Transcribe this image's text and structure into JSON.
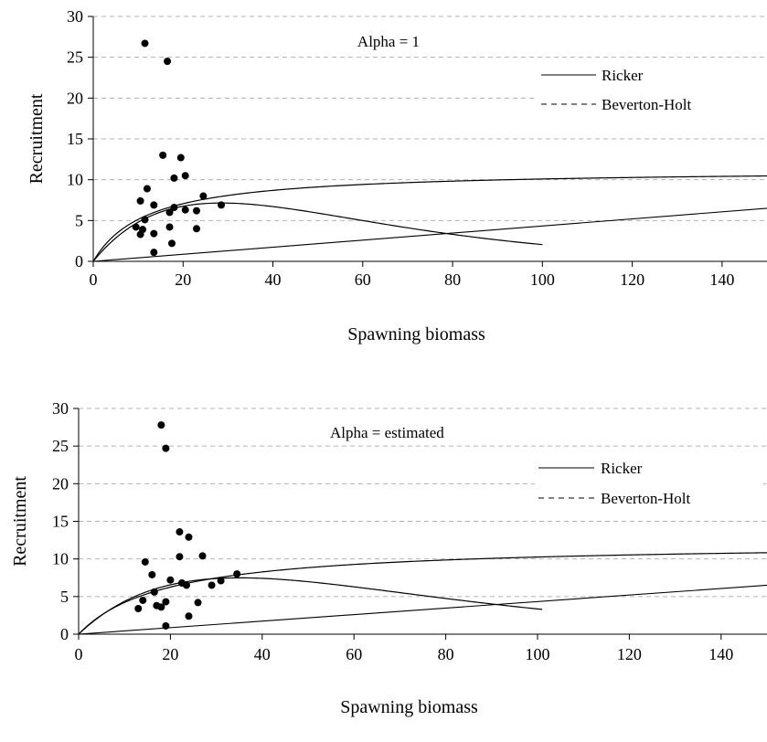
{
  "chart_data": [
    {
      "type": "scatter",
      "annotation": "Alpha = 1",
      "xlabel": "Spawning biomass",
      "ylabel": "Recruitment",
      "xlim": [
        0,
        150
      ],
      "ylim": [
        0,
        30
      ],
      "x_ticks": [
        0,
        20,
        40,
        60,
        80,
        100,
        120,
        140
      ],
      "y_ticks": [
        0,
        5,
        10,
        15,
        20,
        25,
        30
      ],
      "grid": "horizontal dashed",
      "legend": {
        "placement": "top-right",
        "entries": [
          "Ricker",
          "Beverton-Holt"
        ]
      },
      "points": [
        {
          "x": 11.5,
          "y": 26.7
        },
        {
          "x": 16.5,
          "y": 24.5
        },
        {
          "x": 15.5,
          "y": 13.0
        },
        {
          "x": 19.5,
          "y": 12.7
        },
        {
          "x": 20.5,
          "y": 10.5
        },
        {
          "x": 18.0,
          "y": 10.2
        },
        {
          "x": 12.0,
          "y": 8.9
        },
        {
          "x": 24.5,
          "y": 8.0
        },
        {
          "x": 10.5,
          "y": 7.4
        },
        {
          "x": 13.5,
          "y": 6.9
        },
        {
          "x": 28.5,
          "y": 6.9
        },
        {
          "x": 18.0,
          "y": 6.6
        },
        {
          "x": 20.5,
          "y": 6.3
        },
        {
          "x": 23.0,
          "y": 6.2
        },
        {
          "x": 17.0,
          "y": 6.0
        },
        {
          "x": 11.5,
          "y": 5.1
        },
        {
          "x": 9.5,
          "y": 4.2
        },
        {
          "x": 11.0,
          "y": 3.9
        },
        {
          "x": 17.0,
          "y": 4.2
        },
        {
          "x": 23.0,
          "y": 4.0
        },
        {
          "x": 10.5,
          "y": 3.3
        },
        {
          "x": 13.5,
          "y": 3.4
        },
        {
          "x": 17.5,
          "y": 2.2
        },
        {
          "x": 13.5,
          "y": 1.1
        }
      ],
      "curves": {
        "ricker": {
          "a": 0.68,
          "b": 0.035,
          "xmax": 100
        },
        "bevertonHolt": {
          "a": 11.3,
          "b": 12.0,
          "xmax": 150
        },
        "line": {
          "x": [
            0,
            150
          ],
          "y": [
            0,
            6.5
          ]
        }
      }
    },
    {
      "type": "scatter",
      "annotation": "Alpha = estimated",
      "xlabel": "Spawning biomass",
      "ylabel": "Recruitment",
      "xlim": [
        0,
        150
      ],
      "ylim": [
        0,
        30
      ],
      "x_ticks": [
        0,
        20,
        40,
        60,
        80,
        100,
        120,
        140
      ],
      "y_ticks": [
        0,
        5,
        10,
        15,
        20,
        25,
        30
      ],
      "grid": "horizontal dashed",
      "legend": {
        "placement": "top-right",
        "entries": [
          "Ricker",
          "Beverton-Holt"
        ]
      },
      "points": [
        {
          "x": 18.0,
          "y": 27.8
        },
        {
          "x": 19.0,
          "y": 24.7
        },
        {
          "x": 22.0,
          "y": 13.6
        },
        {
          "x": 24.0,
          "y": 12.9
        },
        {
          "x": 27.0,
          "y": 10.4
        },
        {
          "x": 22.0,
          "y": 10.3
        },
        {
          "x": 14.5,
          "y": 9.6
        },
        {
          "x": 34.5,
          "y": 8.0
        },
        {
          "x": 16.0,
          "y": 7.9
        },
        {
          "x": 20.0,
          "y": 7.2
        },
        {
          "x": 31.0,
          "y": 7.1
        },
        {
          "x": 22.5,
          "y": 6.8
        },
        {
          "x": 23.5,
          "y": 6.5
        },
        {
          "x": 29.0,
          "y": 6.5
        },
        {
          "x": 16.5,
          "y": 5.6
        },
        {
          "x": 14.0,
          "y": 4.5
        },
        {
          "x": 19.0,
          "y": 4.3
        },
        {
          "x": 26.0,
          "y": 4.2
        },
        {
          "x": 13.0,
          "y": 3.4
        },
        {
          "x": 17.0,
          "y": 3.8
        },
        {
          "x": 18.0,
          "y": 3.6
        },
        {
          "x": 24.0,
          "y": 2.4
        },
        {
          "x": 19.0,
          "y": 1.1
        }
      ],
      "curves": {
        "ricker": {
          "a": 0.58,
          "b": 0.0285,
          "xmax": 101
        },
        "bevertonHolt": {
          "a": 12.2,
          "b": 19.0,
          "xmax": 150
        },
        "line": {
          "x": [
            0,
            150
          ],
          "y": [
            0,
            6.5
          ]
        }
      }
    }
  ]
}
